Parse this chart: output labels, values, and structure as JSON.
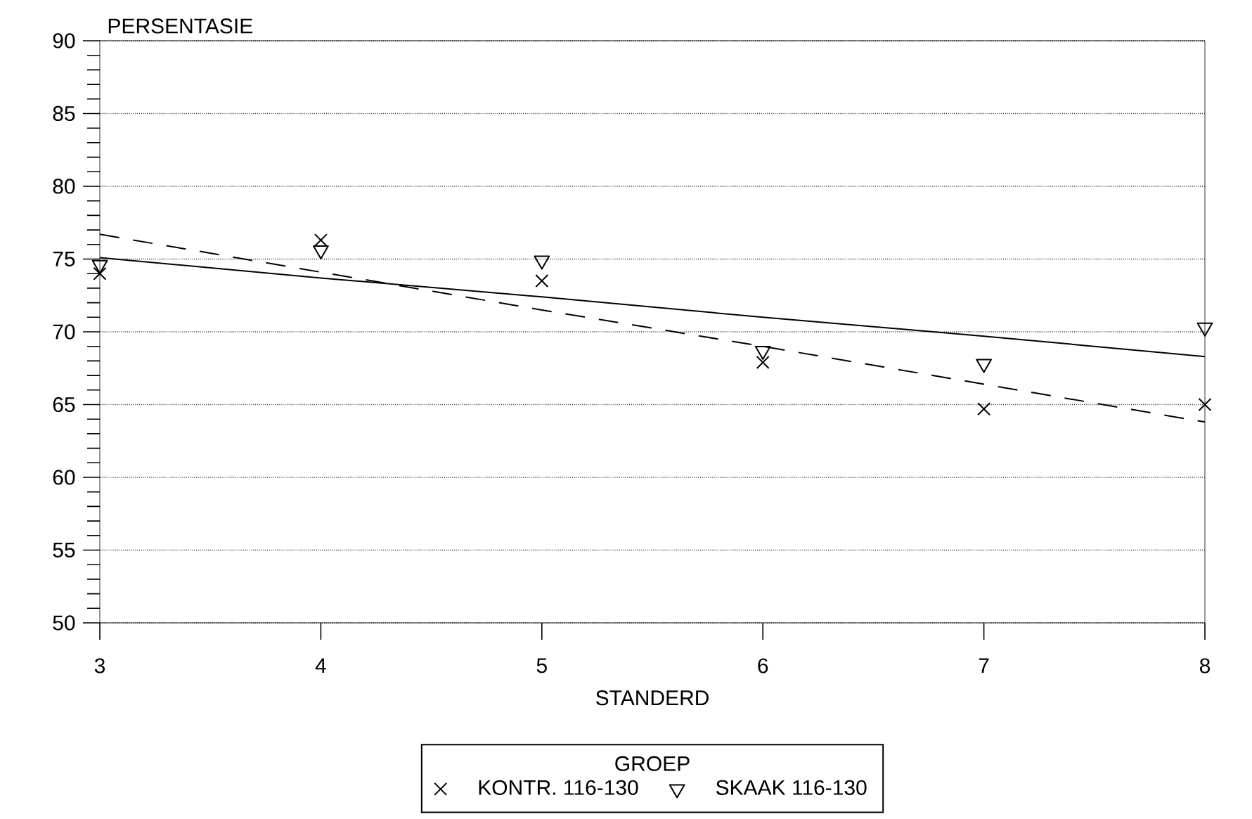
{
  "chart_data": {
    "type": "scatter",
    "xlabel": "STANDERD",
    "ylabel": "PERSENTASIE",
    "legend_title": "GROEP",
    "x": [
      3,
      4,
      5,
      6,
      7,
      8
    ],
    "xlim": [
      3,
      8
    ],
    "xticks": [
      3,
      4,
      5,
      6,
      7,
      8
    ],
    "ylim": [
      50,
      90
    ],
    "yticks": [
      50,
      55,
      60,
      65,
      70,
      75,
      80,
      85,
      90
    ],
    "grid": "y",
    "legend": "bottom",
    "series": [
      {
        "name": "KONTR. 116-130",
        "color": "#000000",
        "marker": "cross",
        "values": [
          74.0,
          76.3,
          73.5,
          67.9,
          64.7,
          65.0
        ]
      },
      {
        "name": "SKAAK 116-130",
        "color": "#000000",
        "marker": "triangle",
        "values": [
          74.6,
          75.6,
          74.9,
          68.7,
          67.8,
          70.3
        ]
      },
      {
        "type": "line",
        "values": [
          76.7,
          74.1,
          71.5,
          69.0,
          66.4,
          63.8
        ],
        "color": "#000000",
        "line_style": "dashed",
        "marker": "none"
      },
      {
        "type": "line",
        "values": [
          75.1,
          73.7,
          72.4,
          71.0,
          69.7,
          68.3
        ],
        "color": "#000000",
        "line_style": "solid",
        "marker": "none"
      }
    ]
  }
}
